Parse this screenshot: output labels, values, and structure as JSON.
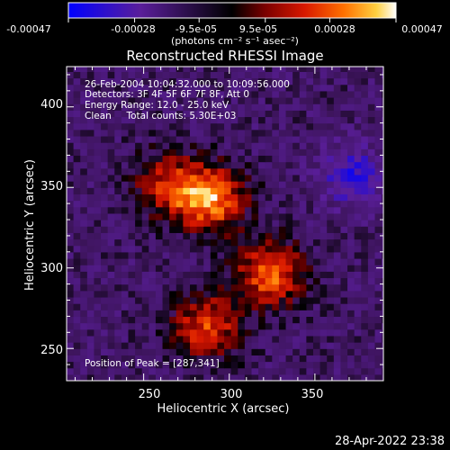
{
  "colorbar": {
    "tick_labels": [
      "-0.00047",
      "-0.00028",
      "-9.5e-05",
      "9.5e-05",
      "0.00028",
      "0.00047"
    ],
    "tick_values": [
      -0.00047,
      -0.00028,
      -9.5e-05,
      9.5e-05,
      0.00028,
      0.00047
    ],
    "range": [
      -0.00047,
      0.00047
    ],
    "units_label": "(photons cm⁻² s⁻¹ asec⁻²)",
    "colors": [
      "#0000ff",
      "#5a1e9a",
      "#000000",
      "#7a0000",
      "#d81800",
      "#ff7000",
      "#ffd040",
      "#ffffff"
    ]
  },
  "chart_data": {
    "type": "heatmap",
    "title": "Reconstructed RHESSI Image",
    "xlabel": "Heliocentric X (arcsec)",
    "ylabel": "Heliocentric Y (arcsec)",
    "xlim": [
      205,
      390
    ],
    "ylim": [
      230,
      425
    ],
    "xticks": [
      250,
      300,
      350
    ],
    "yticks": [
      250,
      300,
      350,
      400
    ],
    "xtick_labels": [
      "250",
      "300",
      "350"
    ],
    "ytick_labels": [
      "250",
      "300",
      "350",
      "400"
    ],
    "value_range": [
      -0.00047,
      0.00047
    ],
    "sources": [
      {
        "x": 287,
        "y": 341,
        "peak": 0.00047
      },
      {
        "x": 322,
        "y": 295,
        "peak": 0.00042
      },
      {
        "x": 285,
        "y": 262,
        "peak": 0.00036
      },
      {
        "x": 262,
        "y": 350,
        "peak": 0.0003
      }
    ],
    "annotations": [
      "26-Feb-2004 10:04:32.000 to 10:09:56.000",
      "Detectors: 3F 4F 5F 6F 7F 8F, Att 0",
      "Energy Range: 12.0 - 25.0 keV",
      "Clean     Total counts: 5.30E+03"
    ],
    "peak_label": "Position of Peak = [287,341]"
  },
  "footer": {
    "timestamp": "28-Apr-2022 23:38"
  }
}
